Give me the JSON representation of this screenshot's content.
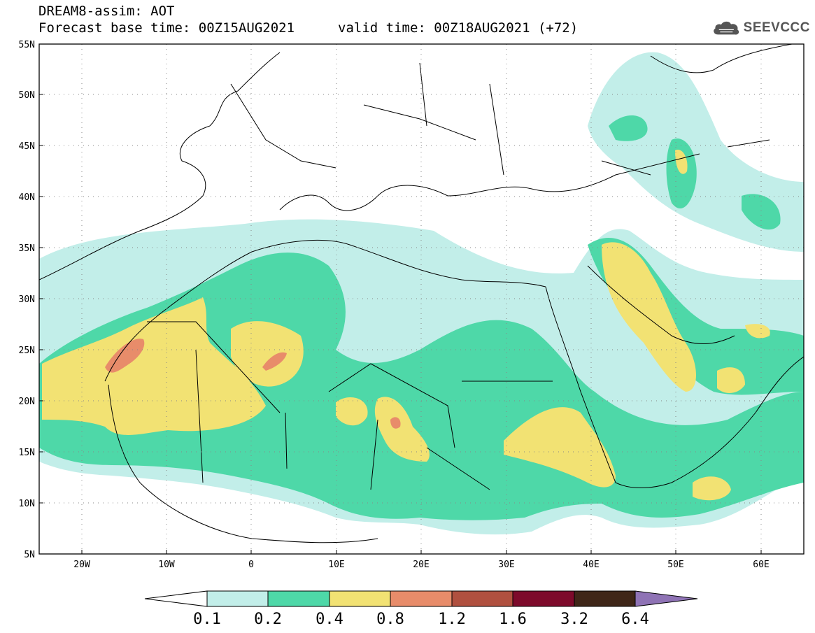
{
  "header": {
    "line1": "DREAM8-assim: AOT",
    "line2": "Forecast base time: 00Z15AUG2021",
    "valid": "valid time: 00Z18AUG2021 (+72)"
  },
  "logo": {
    "text": "SEEVCCC",
    "icon": "cloud-icon"
  },
  "map": {
    "lon_range": [
      -25,
      65
    ],
    "lat_range": [
      5,
      55
    ],
    "lat_ticks": [
      "55N",
      "50N",
      "45N",
      "40N",
      "35N",
      "30N",
      "25N",
      "20N",
      "15N",
      "10N",
      "5N"
    ],
    "lon_ticks": [
      "20W",
      "10W",
      "0",
      "10E",
      "20E",
      "30E",
      "40E",
      "50E",
      "60E"
    ],
    "gridlines": "dotted"
  },
  "colorbar": {
    "colors": [
      "#ffffff",
      "#c2eee9",
      "#4ed8a8",
      "#f2e273",
      "#e88c6a",
      "#b0503f",
      "#7d0a2b",
      "#3f2618",
      "#8f73b5"
    ],
    "labels": [
      "0.1",
      "0.2",
      "0.4",
      "0.8",
      "1.2",
      "1.6",
      "3.2",
      "6.4"
    ]
  }
}
